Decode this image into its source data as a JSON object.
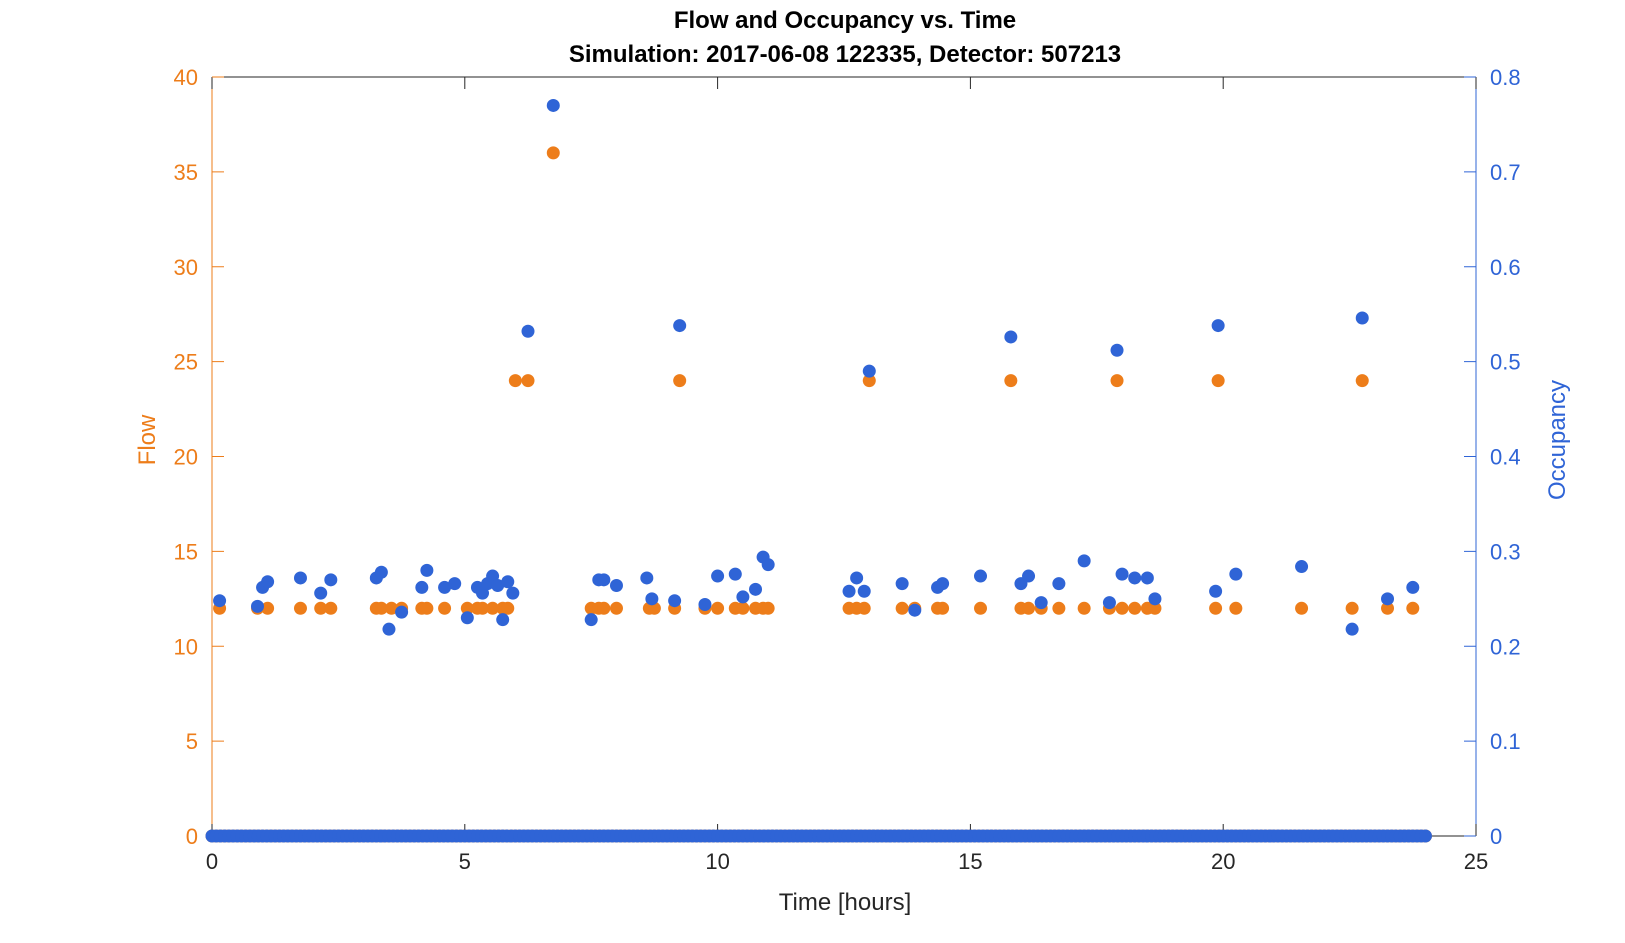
{
  "chart_data": {
    "type": "scatter",
    "title": "Flow and Occupancy vs. Time",
    "subtitle": "Simulation:  2017-06-08 122335,  Detector:  507213",
    "xlabel": "Time [hours]",
    "ylabel_left": "Flow",
    "ylabel_right": "Occupancy",
    "xlim": [
      0,
      25
    ],
    "ylim_left": [
      0,
      40
    ],
    "ylim_right": [
      0,
      0.8
    ],
    "x_ticks": [
      "0",
      "5",
      "10",
      "15",
      "20",
      "25"
    ],
    "y_left_ticks": [
      "0",
      "5",
      "10",
      "15",
      "20",
      "25",
      "30",
      "35",
      "40"
    ],
    "y_right_ticks": [
      "0",
      "0.1",
      "0.2",
      "0.3",
      "0.4",
      "0.5",
      "0.6",
      "0.7",
      "0.8"
    ],
    "grid": false,
    "colors": {
      "flow": "#ed7d1a",
      "occupancy": "#2f64d6",
      "axis": "#000000"
    },
    "series": [
      {
        "name": "Flow",
        "axis": "left",
        "points": [
          [
            0.15,
            12
          ],
          [
            0.9,
            12
          ],
          [
            1.1,
            12
          ],
          [
            1.75,
            12
          ],
          [
            2.15,
            12
          ],
          [
            2.35,
            12
          ],
          [
            3.25,
            12
          ],
          [
            3.35,
            12
          ],
          [
            3.55,
            12
          ],
          [
            3.75,
            12
          ],
          [
            4.15,
            12
          ],
          [
            4.25,
            12
          ],
          [
            4.6,
            12
          ],
          [
            5.05,
            12
          ],
          [
            5.25,
            12
          ],
          [
            5.35,
            12
          ],
          [
            5.55,
            12
          ],
          [
            5.75,
            12
          ],
          [
            5.85,
            12
          ],
          [
            6.0,
            24
          ],
          [
            6.25,
            24
          ],
          [
            6.75,
            36
          ],
          [
            7.5,
            12
          ],
          [
            7.65,
            12
          ],
          [
            7.75,
            12
          ],
          [
            8.0,
            12
          ],
          [
            8.65,
            12
          ],
          [
            8.75,
            12
          ],
          [
            9.15,
            12
          ],
          [
            9.25,
            24
          ],
          [
            9.75,
            12
          ],
          [
            10.0,
            12
          ],
          [
            10.35,
            12
          ],
          [
            10.5,
            12
          ],
          [
            10.75,
            12
          ],
          [
            10.9,
            12
          ],
          [
            11.0,
            12
          ],
          [
            12.6,
            12
          ],
          [
            12.75,
            12
          ],
          [
            12.9,
            12
          ],
          [
            13.0,
            24
          ],
          [
            13.65,
            12
          ],
          [
            13.9,
            12
          ],
          [
            14.35,
            12
          ],
          [
            14.45,
            12
          ],
          [
            15.2,
            12
          ],
          [
            15.8,
            24
          ],
          [
            16.0,
            12
          ],
          [
            16.15,
            12
          ],
          [
            16.4,
            12
          ],
          [
            16.75,
            12
          ],
          [
            17.25,
            12
          ],
          [
            17.75,
            12
          ],
          [
            17.9,
            24
          ],
          [
            18.0,
            12
          ],
          [
            18.25,
            12
          ],
          [
            18.5,
            12
          ],
          [
            18.65,
            12
          ],
          [
            19.85,
            12
          ],
          [
            19.9,
            24
          ],
          [
            20.25,
            12
          ],
          [
            21.55,
            12
          ],
          [
            22.55,
            12
          ],
          [
            22.75,
            24
          ],
          [
            23.25,
            12
          ],
          [
            23.75,
            12
          ]
        ]
      },
      {
        "name": "Occupancy",
        "axis": "right",
        "points": [
          [
            0.15,
            0.248
          ],
          [
            0.9,
            0.242
          ],
          [
            1.0,
            0.262
          ],
          [
            1.1,
            0.268
          ],
          [
            1.75,
            0.272
          ],
          [
            2.15,
            0.256
          ],
          [
            2.35,
            0.27
          ],
          [
            3.25,
            0.272
          ],
          [
            3.35,
            0.278
          ],
          [
            3.5,
            0.218
          ],
          [
            3.75,
            0.236
          ],
          [
            4.15,
            0.262
          ],
          [
            4.25,
            0.28
          ],
          [
            4.6,
            0.262
          ],
          [
            4.8,
            0.266
          ],
          [
            5.05,
            0.23
          ],
          [
            5.25,
            0.262
          ],
          [
            5.35,
            0.256
          ],
          [
            5.45,
            0.266
          ],
          [
            5.55,
            0.274
          ],
          [
            5.65,
            0.264
          ],
          [
            5.75,
            0.228
          ],
          [
            5.85,
            0.268
          ],
          [
            5.95,
            0.256
          ],
          [
            6.25,
            0.532
          ],
          [
            6.75,
            0.77
          ],
          [
            7.5,
            0.228
          ],
          [
            7.65,
            0.27
          ],
          [
            7.75,
            0.27
          ],
          [
            8.0,
            0.264
          ],
          [
            8.6,
            0.272
          ],
          [
            8.7,
            0.25
          ],
          [
            9.15,
            0.248
          ],
          [
            9.25,
            0.538
          ],
          [
            9.75,
            0.244
          ],
          [
            10.0,
            0.274
          ],
          [
            10.35,
            0.276
          ],
          [
            10.5,
            0.252
          ],
          [
            10.75,
            0.26
          ],
          [
            10.9,
            0.294
          ],
          [
            11.0,
            0.286
          ],
          [
            12.6,
            0.258
          ],
          [
            12.75,
            0.272
          ],
          [
            12.9,
            0.258
          ],
          [
            13.0,
            0.49
          ],
          [
            13.65,
            0.266
          ],
          [
            13.9,
            0.238
          ],
          [
            14.35,
            0.262
          ],
          [
            14.45,
            0.266
          ],
          [
            15.2,
            0.274
          ],
          [
            15.8,
            0.526
          ],
          [
            16.0,
            0.266
          ],
          [
            16.15,
            0.274
          ],
          [
            16.4,
            0.246
          ],
          [
            16.75,
            0.266
          ],
          [
            17.25,
            0.29
          ],
          [
            17.75,
            0.246
          ],
          [
            17.9,
            0.512
          ],
          [
            18.0,
            0.276
          ],
          [
            18.25,
            0.272
          ],
          [
            18.5,
            0.272
          ],
          [
            18.65,
            0.25
          ],
          [
            19.85,
            0.258
          ],
          [
            19.9,
            0.538
          ],
          [
            20.25,
            0.276
          ],
          [
            21.55,
            0.284
          ],
          [
            22.55,
            0.218
          ],
          [
            22.75,
            0.546
          ],
          [
            23.25,
            0.25
          ],
          [
            23.75,
            0.262
          ]
        ]
      }
    ]
  }
}
